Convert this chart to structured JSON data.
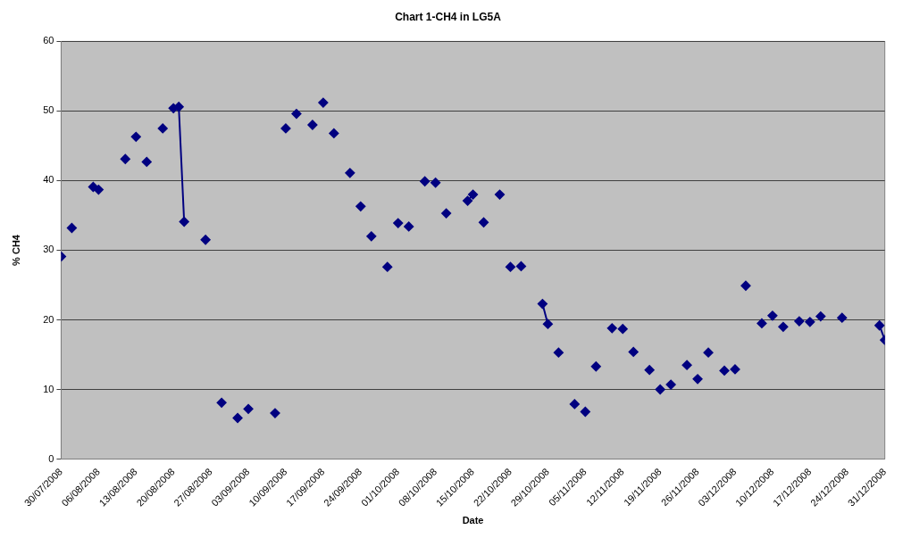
{
  "chart_data": {
    "type": "scatter",
    "title": "Chart 1-CH4 in LG5A",
    "xlabel": "Date",
    "ylabel": "% CH4",
    "x": [
      "2008-07-30",
      "2008-08-01",
      "2008-08-05",
      "2008-08-06",
      "2008-08-11",
      "2008-08-13",
      "2008-08-15",
      "2008-08-18",
      "2008-08-26",
      "2008-08-29",
      "2008-09-01",
      "2008-09-03",
      "2008-09-08",
      "2008-09-10",
      "2008-09-12",
      "2008-09-15",
      "2008-09-17",
      "2008-09-19",
      "2008-09-22",
      "2008-09-24",
      "2008-09-26",
      "2008-09-29",
      "2008-10-01",
      "2008-10-03",
      "2008-10-06",
      "2008-10-08",
      "2008-10-10",
      "2008-10-17",
      "2008-10-20",
      "2008-10-22",
      "2008-10-24",
      "2008-10-31",
      "2008-11-03",
      "2008-11-05",
      "2008-11-07",
      "2008-11-10",
      "2008-11-12",
      "2008-11-14",
      "2008-11-17",
      "2008-11-19",
      "2008-11-21",
      "2008-11-24",
      "2008-11-26",
      "2008-11-28",
      "2008-12-01",
      "2008-12-03",
      "2008-12-05",
      "2008-12-08",
      "2008-12-10",
      "2008-12-12",
      "2008-12-15",
      "2008-12-17",
      "2008-12-19",
      "2008-12-23"
    ],
    "series": [
      {
        "color": "#000080",
        "values": [
          29.1,
          33.2,
          39.1,
          38.7,
          43.1,
          46.3,
          42.7,
          47.5,
          31.5,
          8.1,
          5.9,
          7.2,
          6.6,
          47.5,
          49.6,
          48.0,
          51.2,
          46.8,
          41.1,
          36.3,
          32.0,
          27.6,
          33.9,
          33.4,
          39.9,
          39.7,
          35.3,
          34.0,
          38.0,
          27.6,
          27.7,
          15.3,
          7.9,
          6.8,
          13.3,
          18.8,
          18.7,
          15.4,
          12.8,
          10.0,
          10.7,
          13.5,
          11.5,
          15.3,
          12.7,
          12.9,
          24.9,
          19.5,
          20.6,
          19.0,
          19.8,
          19.7,
          20.5,
          20.3
        ]
      },
      {
        "type": "line",
        "color": "#000080",
        "x": [
          "2008-08-20",
          "2008-08-21",
          "2008-08-22"
        ],
        "values": [
          50.4,
          50.6,
          34.1
        ]
      },
      {
        "type": "line",
        "color": "#000080",
        "x": [
          "2008-10-14",
          "2008-10-15"
        ],
        "values": [
          37.1,
          38.0
        ]
      },
      {
        "type": "line",
        "color": "#000080",
        "x": [
          "2008-10-28",
          "2008-10-29"
        ],
        "values": [
          22.3,
          19.4
        ]
      },
      {
        "type": "line",
        "color": "#000080",
        "x": [
          "2008-12-30",
          "2008-12-31"
        ],
        "values": [
          19.2,
          17.1
        ]
      }
    ],
    "xlim": [
      "2008-07-30",
      "2008-12-31"
    ],
    "xticks": [
      {
        "value": "2008-07-30",
        "label": "30/07/2008"
      },
      {
        "value": "2008-08-06",
        "label": "06/08/2008"
      },
      {
        "value": "2008-08-13",
        "label": "13/08/2008"
      },
      {
        "value": "2008-08-20",
        "label": "20/08/2008"
      },
      {
        "value": "2008-08-27",
        "label": "27/08/2008"
      },
      {
        "value": "2008-09-03",
        "label": "03/09/2008"
      },
      {
        "value": "2008-09-10",
        "label": "10/09/2008"
      },
      {
        "value": "2008-09-17",
        "label": "17/09/2008"
      },
      {
        "value": "2008-09-24",
        "label": "24/09/2008"
      },
      {
        "value": "2008-10-01",
        "label": "01/10/2008"
      },
      {
        "value": "2008-10-08",
        "label": "08/10/2008"
      },
      {
        "value": "2008-10-15",
        "label": "15/10/2008"
      },
      {
        "value": "2008-10-22",
        "label": "22/10/2008"
      },
      {
        "value": "2008-10-29",
        "label": "29/10/2008"
      },
      {
        "value": "2008-11-05",
        "label": "05/11/2008"
      },
      {
        "value": "2008-11-12",
        "label": "12/11/2008"
      },
      {
        "value": "2008-11-19",
        "label": "19/11/2008"
      },
      {
        "value": "2008-11-26",
        "label": "26/11/2008"
      },
      {
        "value": "2008-12-03",
        "label": "03/12/2008"
      },
      {
        "value": "2008-12-10",
        "label": "10/12/2008"
      },
      {
        "value": "2008-12-17",
        "label": "17/12/2008"
      },
      {
        "value": "2008-12-24",
        "label": "24/12/2008"
      },
      {
        "value": "2008-12-31",
        "label": "31/12/2008"
      }
    ],
    "ylim": [
      0,
      60
    ],
    "yticks": [
      0,
      10,
      20,
      30,
      40,
      50,
      60
    ],
    "grid": "y",
    "legend": false,
    "marker": "diamond",
    "line_style": "solid"
  }
}
